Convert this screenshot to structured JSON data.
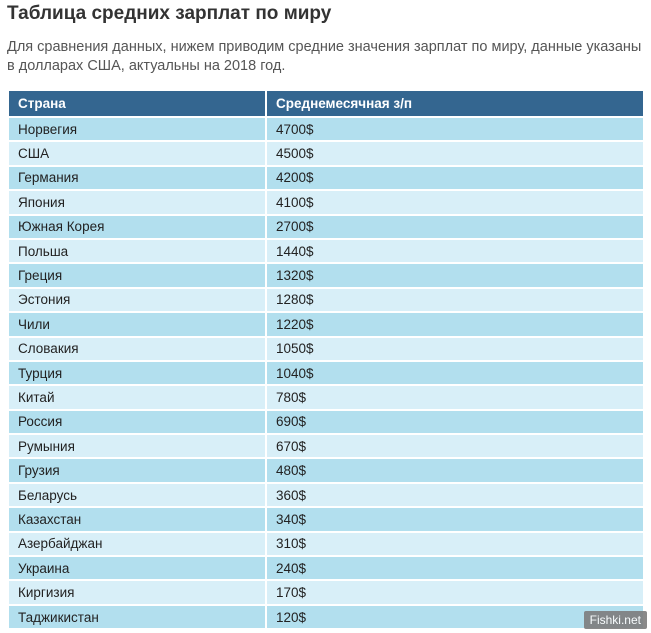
{
  "title": "Таблица средних зарплат по миру",
  "intro": "Для сравнения данных, нижем приводим средние значения зарплат по миру, данные указаны в долларах США, актуальны на 2018 год.",
  "table": {
    "headers": [
      "Страна",
      "Среднемесячная з/п"
    ],
    "rows": [
      {
        "country": "Норвегия",
        "salary": "4700$"
      },
      {
        "country": "США",
        "salary": "4500$"
      },
      {
        "country": "Германия",
        "salary": "4200$"
      },
      {
        "country": "Япония",
        "salary": "4100$"
      },
      {
        "country": "Южная Корея",
        "salary": "2700$"
      },
      {
        "country": "Польша",
        "salary": "1440$"
      },
      {
        "country": "Греция",
        "salary": "1320$"
      },
      {
        "country": "Эстония",
        "salary": "1280$"
      },
      {
        "country": "Чили",
        "salary": "1220$"
      },
      {
        "country": "Словакия",
        "salary": "1050$"
      },
      {
        "country": "Турция",
        "salary": "1040$"
      },
      {
        "country": "Китай",
        "salary": "780$"
      },
      {
        "country": "Россия",
        "salary": "690$"
      },
      {
        "country": "Румыния",
        "salary": "670$"
      },
      {
        "country": "Грузия",
        "salary": "480$"
      },
      {
        "country": "Беларусь",
        "salary": "360$"
      },
      {
        "country": "Казахстан",
        "salary": "340$"
      },
      {
        "country": "Азербайджан",
        "salary": "310$"
      },
      {
        "country": "Украина",
        "salary": "240$"
      },
      {
        "country": "Киргизия",
        "salary": "170$"
      },
      {
        "country": "Таджикистан",
        "salary": "120$"
      }
    ]
  },
  "watermark": "Fishki.net",
  "colors": {
    "header_bg": "#346690",
    "row_odd": "#b2dfee",
    "row_even": "#d8eff8"
  }
}
